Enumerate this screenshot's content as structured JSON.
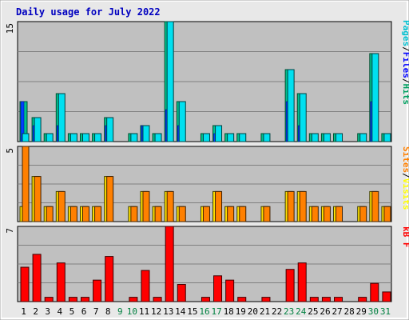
{
  "chart_data": {
    "type": "bar",
    "title": "Daily usage for July 2022",
    "categories": [
      "1",
      "2",
      "3",
      "4",
      "5",
      "6",
      "7",
      "8",
      "9",
      "10",
      "11",
      "12",
      "13",
      "14",
      "15",
      "16",
      "17",
      "18",
      "19",
      "20",
      "21",
      "22",
      "23",
      "24",
      "25",
      "26",
      "27",
      "28",
      "29",
      "30",
      "31"
    ],
    "weekend_days": [
      "9",
      "10",
      "16",
      "17",
      "23",
      "24",
      "30",
      "31"
    ],
    "panels": [
      {
        "name": "hits-files-pages",
        "ylim": [
          0,
          15
        ],
        "max_label": "15",
        "legend": [
          "Pages",
          "/",
          "Files",
          "/",
          "Hits"
        ],
        "legend_colors": [
          "#00c0d0",
          "#000000",
          "#0000ff",
          "#000000",
          "#00a060"
        ],
        "series": [
          {
            "name": "Hits",
            "values": [
              5,
              3,
              1,
              6,
              1,
              1,
              1,
              3,
              0,
              1,
              2,
              1,
              15,
              5,
              0,
              1,
              2,
              1,
              1,
              0,
              1,
              0,
              9,
              6,
              1,
              1,
              1,
              0,
              1,
              11,
              1
            ]
          },
          {
            "name": "Files",
            "values": [
              5,
              2,
              0,
              2,
              0,
              0,
              0,
              2,
              0,
              0,
              2,
              0,
              4,
              2,
              0,
              0,
              1,
              0,
              0,
              0,
              0,
              0,
              5,
              2,
              0,
              0,
              0,
              0,
              0,
              5,
              0
            ]
          },
          {
            "name": "Pages",
            "values": [
              1,
              3,
              1,
              6,
              1,
              1,
              1,
              3,
              0,
              1,
              2,
              1,
              15,
              5,
              0,
              1,
              2,
              1,
              1,
              0,
              1,
              0,
              9,
              6,
              1,
              1,
              1,
              0,
              1,
              11,
              1
            ]
          }
        ]
      },
      {
        "name": "visits-sites",
        "ylim": [
          0,
          5
        ],
        "max_label": "5",
        "legend": [
          "Sites",
          "/",
          "Visits"
        ],
        "legend_colors": [
          "#ff8000",
          "#000000",
          "#ffff00"
        ],
        "series": [
          {
            "name": "Visits",
            "values": [
              1,
              3,
              1,
              2,
              1,
              1,
              1,
              3,
              0,
              1,
              2,
              1,
              2,
              1,
              0,
              1,
              2,
              1,
              1,
              0,
              1,
              0,
              2,
              2,
              1,
              1,
              1,
              0,
              1,
              2,
              1
            ]
          },
          {
            "name": "Sites",
            "values": [
              5,
              3,
              1,
              2,
              1,
              1,
              1,
              3,
              0,
              1,
              2,
              1,
              2,
              1,
              0,
              1,
              2,
              1,
              1,
              0,
              1,
              0,
              2,
              2,
              1,
              1,
              1,
              0,
              1,
              2,
              1
            ]
          }
        ]
      },
      {
        "name": "kbytes",
        "ylim": [
          0,
          7
        ],
        "max_label": "7",
        "legend": [
          "kB F"
        ],
        "legend_colors": [
          "#ff0000"
        ],
        "series": [
          {
            "name": "kB F",
            "values": [
              3.2,
              4.4,
              0.4,
              3.6,
              0.4,
              0.4,
              2.0,
              4.2,
              0,
              0.4,
              2.9,
              0.4,
              7.0,
              1.6,
              0,
              0.4,
              2.4,
              2.0,
              0.4,
              0,
              0.4,
              0,
              3.0,
              3.6,
              0.4,
              0.4,
              0.4,
              0,
              0.4,
              1.7,
              0.9
            ]
          }
        ]
      }
    ],
    "colors": {
      "background": "#c0c0c0",
      "hits": "#00c090",
      "hits_edge": "#005030",
      "files": "#0040ff",
      "pages": "#00e0f0",
      "visits": "#ffe000",
      "sites": "#ff8000",
      "kbytes": "#ff0000",
      "weekday_label": "#000000",
      "weekend_label": "#008040",
      "title": "#0000c0"
    },
    "grid": true
  }
}
